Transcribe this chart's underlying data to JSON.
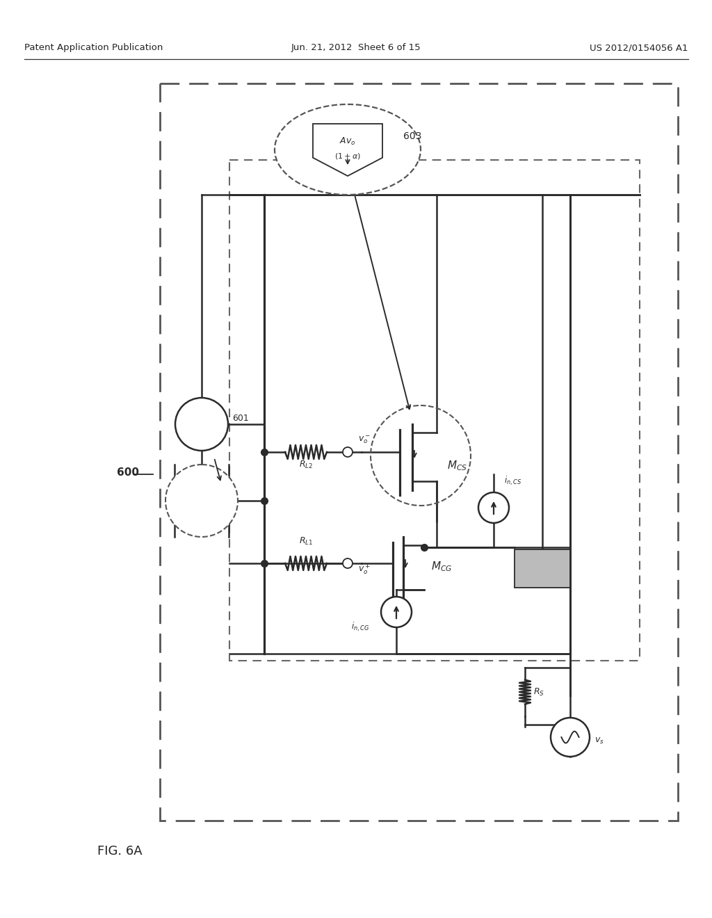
{
  "bg_color": "#ffffff",
  "header_left": "Patent Application Publication",
  "header_center": "Jun. 21, 2012  Sheet 6 of 15",
  "header_right": "US 2012/0154056 A1",
  "footer_label": "FIG. 6A",
  "label_600": "600",
  "color_main": "#2a2a2a",
  "color_dashed": "#555555"
}
